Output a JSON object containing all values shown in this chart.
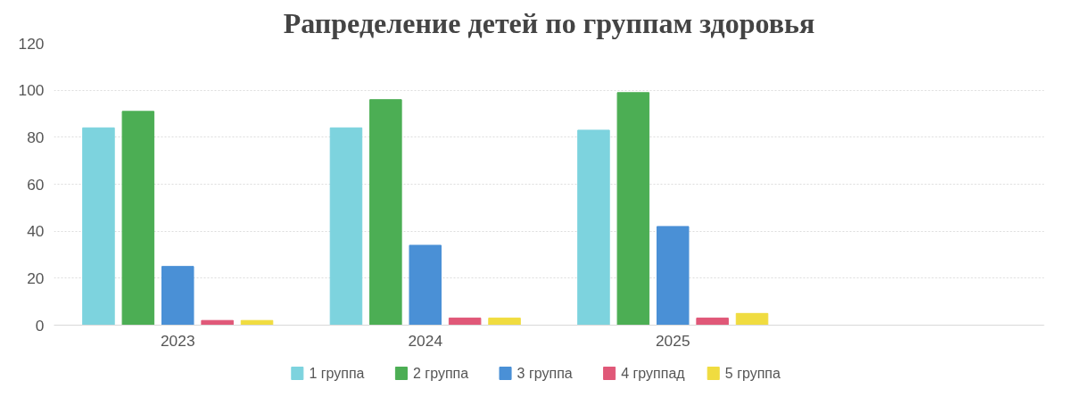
{
  "chart_data": {
    "type": "bar",
    "title": "Рапределение детей по группам здоровья",
    "categories": [
      "2023",
      "2024",
      "2025",
      null
    ],
    "series": [
      {
        "name": "1 группа",
        "color": "#7dd3de",
        "values": [
          84,
          84,
          83,
          null
        ]
      },
      {
        "name": "2 группа",
        "color": "#4cae54",
        "values": [
          91,
          96,
          99,
          null
        ]
      },
      {
        "name": "3 группа",
        "color": "#4a90d6",
        "values": [
          25,
          34,
          42,
          null
        ]
      },
      {
        "name": "4 группад",
        "color": "#e05878",
        "values": [
          2,
          3,
          3,
          null
        ]
      },
      {
        "name": "5 группа",
        "color": "#f0dc40",
        "values": [
          2,
          3,
          5,
          null
        ]
      }
    ],
    "ylim": [
      0,
      120
    ],
    "yticks": [
      0,
      20,
      40,
      60,
      80,
      100,
      120
    ],
    "grid": "y",
    "legend": "bottom"
  }
}
